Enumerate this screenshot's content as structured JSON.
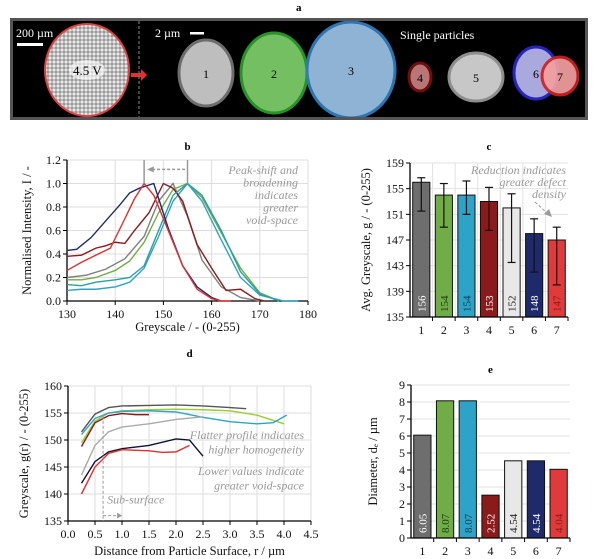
{
  "figure": {
    "panel_a": {
      "label": "a",
      "scale_bar_left": "200 µm",
      "scale_bar_right": "2 µm",
      "cell_label": "4.5 V",
      "single_particles_label": "Single particles",
      "particles": [
        {
          "id": "1",
          "color": "#cfcfcf",
          "edge": "#777777"
        },
        {
          "id": "2",
          "color": "#7ed06a",
          "edge": "#2aa02a"
        },
        {
          "id": "3",
          "color": "#9cc3e6",
          "edge": "#2f7fc0"
        },
        {
          "id": "4",
          "color": "#c98080",
          "edge": "#7a1010"
        },
        {
          "id": "5",
          "color": "#d8d8d8",
          "edge": "#999999"
        },
        {
          "id": "6",
          "color": "#b8b8f0",
          "edge": "#2a2ad0"
        },
        {
          "id": "7",
          "color": "#f2a0a0",
          "edge": "#d02020"
        }
      ]
    }
  },
  "chart_data": [
    {
      "panel": "b",
      "type": "line",
      "title": "b",
      "xlabel": "Greyscale / - (0-255)",
      "ylabel": "Normalised Intensity, I / -",
      "xlim": [
        130,
        180
      ],
      "ylim": [
        0,
        1.2
      ],
      "xticks": [
        "130",
        "140",
        "150",
        "160",
        "170",
        "180"
      ],
      "yticks": [
        "0.0",
        "0.2",
        "0.4",
        "0.6",
        "0.8",
        "1.0",
        "1.2"
      ],
      "grid": true,
      "annotation": [
        "Peak-shift and",
        "broadening",
        "indicates",
        "greater",
        "void-space"
      ],
      "series": [
        {
          "name": "1",
          "color": "#7f7f7f",
          "x": [
            130,
            134,
            138,
            142,
            146,
            149,
            152,
            155,
            158,
            162,
            166,
            170
          ],
          "y": [
            0.2,
            0.22,
            0.27,
            0.36,
            0.55,
            0.85,
            1.0,
            0.72,
            0.35,
            0.12,
            0.03,
            0.0
          ]
        },
        {
          "name": "2",
          "color": "#70ad47",
          "x": [
            130,
            133,
            136,
            140,
            143,
            146,
            149,
            152,
            155,
            158,
            162,
            166,
            170,
            174
          ],
          "y": [
            0.18,
            0.18,
            0.2,
            0.26,
            0.34,
            0.5,
            0.75,
            0.95,
            1.0,
            0.88,
            0.58,
            0.28,
            0.07,
            0.0
          ]
        },
        {
          "name": "3",
          "color": "#2ea3c8",
          "x": [
            130,
            133,
            136,
            140,
            143,
            146,
            149,
            152,
            155,
            158,
            162,
            166,
            170,
            175,
            178
          ],
          "y": [
            0.09,
            0.1,
            0.1,
            0.12,
            0.16,
            0.28,
            0.55,
            0.85,
            1.0,
            0.85,
            0.52,
            0.2,
            0.05,
            0.0,
            0.0
          ]
        },
        {
          "name": "4",
          "color": "#8b1a1a",
          "x": [
            130,
            133,
            136,
            138,
            140,
            142,
            144,
            147,
            150,
            152,
            154,
            157,
            160,
            163,
            166,
            169,
            171
          ],
          "y": [
            0.38,
            0.39,
            0.45,
            0.47,
            0.5,
            0.49,
            0.6,
            0.75,
            1.0,
            0.96,
            0.85,
            0.48,
            0.28,
            0.09,
            0.1,
            0.02,
            0.0
          ]
        },
        {
          "name": "5",
          "color": "#2aa0a0",
          "x": [
            130,
            133,
            136,
            140,
            143,
            146,
            149,
            152,
            155,
            158,
            162,
            166,
            170,
            174
          ],
          "y": [
            0.14,
            0.13,
            0.16,
            0.18,
            0.2,
            0.3,
            0.6,
            0.9,
            1.0,
            0.9,
            0.6,
            0.25,
            0.06,
            0.0
          ]
        },
        {
          "name": "6",
          "color": "#1f2a6b",
          "x": [
            130,
            132,
            135,
            138,
            141,
            143,
            145,
            148,
            151,
            154,
            157,
            160,
            162
          ],
          "y": [
            0.43,
            0.44,
            0.54,
            0.68,
            0.82,
            0.92,
            0.96,
            1.0,
            0.62,
            0.3,
            0.12,
            0.03,
            0.0
          ]
        },
        {
          "name": "7",
          "color": "#e03030",
          "x": [
            130,
            133,
            136,
            139,
            142,
            144,
            146,
            148,
            151,
            154,
            157,
            160,
            162,
            164
          ],
          "y": [
            0.26,
            0.33,
            0.39,
            0.45,
            0.7,
            0.87,
            1.0,
            0.9,
            0.6,
            0.3,
            0.1,
            0.02,
            0.0,
            0.0
          ]
        }
      ]
    },
    {
      "panel": "c",
      "type": "bar",
      "title": "c",
      "xlabel": "",
      "ylabel": "Avg. Greyscale, g / - (0-255)",
      "ylim": [
        135,
        159
      ],
      "yticks": [
        "135",
        "139",
        "143",
        "147",
        "151",
        "155",
        "159"
      ],
      "categories": [
        "1",
        "2",
        "3",
        "4",
        "5",
        "6",
        "7"
      ],
      "values": [
        156,
        154,
        154,
        153,
        152,
        148,
        147
      ],
      "value_labels": [
        "156",
        "154",
        "154",
        "153",
        "152",
        "148",
        "147"
      ],
      "errors_low": [
        151.5,
        149,
        151,
        148.5,
        143.5,
        142,
        140
      ],
      "errors_high": [
        156.7,
        155.8,
        156.2,
        155.2,
        154.2,
        150.3,
        149
      ],
      "colors": [
        "#6e6e6e",
        "#70ad47",
        "#2ea3c8",
        "#8b1a1a",
        "#e8e8e8",
        "#1f2a6b",
        "#e03a3a"
      ],
      "label_colors": [
        "#ffffff",
        "#1a3d10",
        "#0b3f55",
        "#ffffff",
        "#222222",
        "#ffffff",
        "#8b1a1a"
      ],
      "annotation": [
        "Reduction indicates",
        "greater defect",
        "density"
      ]
    },
    {
      "panel": "d",
      "type": "line",
      "title": "d",
      "xlabel": "Distance from Particle Surface, r / µm",
      "ylabel": "Greyscale, g(r) / - (0-255)",
      "xlim": [
        0,
        4.5
      ],
      "ylim": [
        135,
        160
      ],
      "xticks": [
        "0.0",
        "0.5",
        "1.0",
        "1.5",
        "2.0",
        "2.5",
        "3.0",
        "3.5",
        "4.0",
        "4.5"
      ],
      "yticks": [
        "135",
        "140",
        "145",
        "150",
        "155",
        "160"
      ],
      "grid": true,
      "annotations": [
        "Flatter profile indicates",
        "higher homogeneity",
        "Lower values indicate",
        "greater void-space",
        "Sub-surface"
      ],
      "subsurface_r": 0.65,
      "series": [
        {
          "name": "1",
          "color": "#555555",
          "x": [
            0.25,
            0.5,
            0.75,
            1.0,
            1.5,
            2.0,
            2.5,
            3.0,
            3.3
          ],
          "y": [
            151.5,
            154.8,
            156.0,
            156.3,
            156.4,
            156.5,
            156.3,
            156.0,
            155.8
          ]
        },
        {
          "name": "2",
          "color": "#9acd32",
          "x": [
            0.25,
            0.5,
            0.75,
            1.0,
            1.5,
            2.0,
            2.5,
            3.0,
            3.5,
            4.0
          ],
          "y": [
            149.5,
            153.5,
            155.0,
            155.4,
            155.6,
            155.7,
            155.6,
            155.4,
            154.6,
            153.0
          ]
        },
        {
          "name": "3",
          "color": "#2ea3c8",
          "x": [
            0.25,
            0.5,
            0.75,
            1.0,
            1.5,
            2.0,
            2.5,
            3.0,
            3.5,
            3.8,
            4.05
          ],
          "y": [
            151.0,
            154.0,
            155.0,
            155.3,
            155.4,
            155.2,
            154.2,
            153.4,
            153.0,
            153.2,
            154.6
          ]
        },
        {
          "name": "4",
          "color": "#8b1a1a",
          "x": [
            0.25,
            0.5,
            0.75,
            1.0,
            1.25,
            1.5
          ],
          "y": [
            148.8,
            153.2,
            154.5,
            154.9,
            154.7,
            154.7
          ]
        },
        {
          "name": "5",
          "color": "#aaaaaa",
          "x": [
            0.25,
            0.5,
            0.75,
            1.0,
            1.5,
            2.0,
            2.5
          ],
          "y": [
            143.5,
            149.0,
            151.5,
            152.4,
            153.0,
            153.8,
            154.3
          ]
        },
        {
          "name": "6",
          "color": "#111133",
          "x": [
            0.25,
            0.5,
            0.75,
            1.0,
            1.5,
            2.0,
            2.25,
            2.5
          ],
          "y": [
            142.0,
            146.0,
            147.8,
            148.4,
            149.0,
            150.2,
            150.0,
            147.0
          ]
        },
        {
          "name": "7",
          "color": "#e03030",
          "x": [
            0.25,
            0.5,
            0.75,
            1.0,
            1.5,
            1.75,
            2.0,
            2.25
          ],
          "y": [
            140.0,
            145.0,
            147.5,
            148.2,
            148.0,
            147.7,
            147.8,
            149.0
          ]
        }
      ]
    },
    {
      "panel": "e",
      "type": "bar",
      "title": "e",
      "xlabel": "",
      "ylabel": "Diameter, dₑ / µm",
      "ylim": [
        0,
        9
      ],
      "yticks": [
        "0",
        "1",
        "2",
        "3",
        "4",
        "5",
        "6",
        "7",
        "8",
        "9"
      ],
      "categories": [
        "1",
        "2",
        "3",
        "4",
        "5",
        "6",
        "7"
      ],
      "values": [
        6.05,
        8.07,
        8.07,
        2.52,
        4.54,
        4.54,
        4.04
      ],
      "value_labels": [
        "6.05",
        "8.07",
        "8.07",
        "2.52",
        "4.54",
        "4.54",
        "4.04"
      ],
      "colors": [
        "#6e6e6e",
        "#70ad47",
        "#2ea3c8",
        "#8b1a1a",
        "#e8e8e8",
        "#1f2a6b",
        "#e03a3a"
      ],
      "label_colors": [
        "#ffffff",
        "#1a3d10",
        "#0b3f55",
        "#ffffff",
        "#222222",
        "#ffffff",
        "#8b1a1a"
      ]
    }
  ]
}
